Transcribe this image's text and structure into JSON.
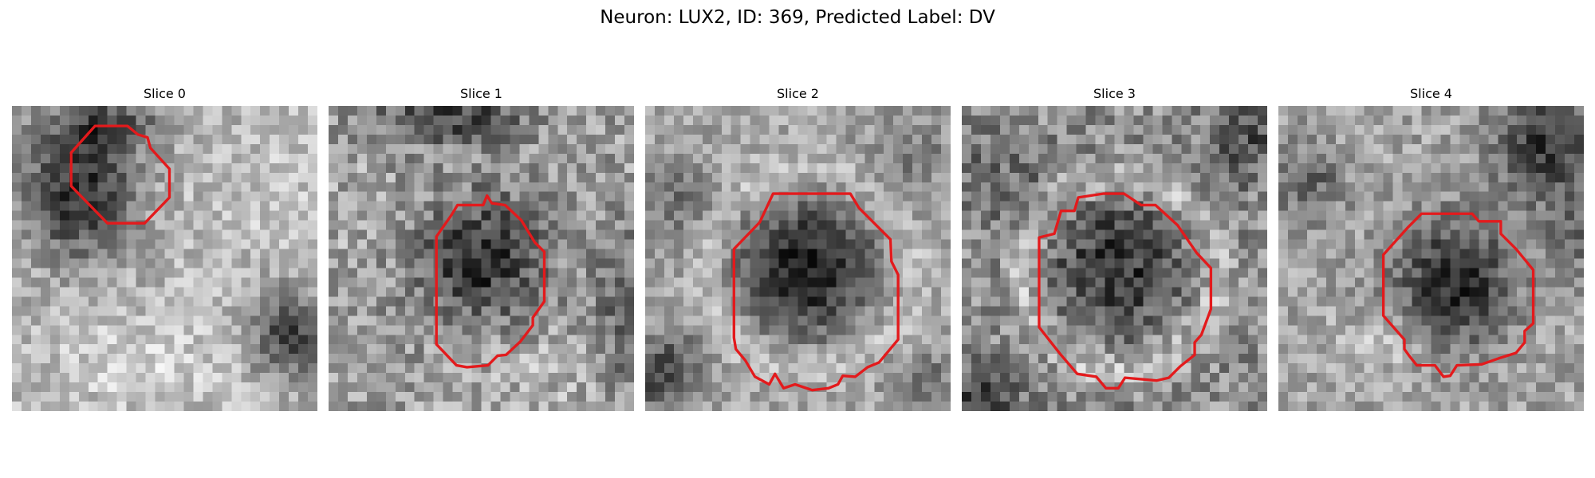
{
  "figure": {
    "title": "Neuron: LUX2, ID: 369, Predicted Label: DV"
  },
  "panels": [
    {
      "title": "Slice 0"
    },
    {
      "title": "Slice 1"
    },
    {
      "title": "Slice 2"
    },
    {
      "title": "Slice 3"
    },
    {
      "title": "Slice 4"
    }
  ],
  "colors": {
    "contour": "#e31a1c",
    "background": "#ffffff"
  }
}
